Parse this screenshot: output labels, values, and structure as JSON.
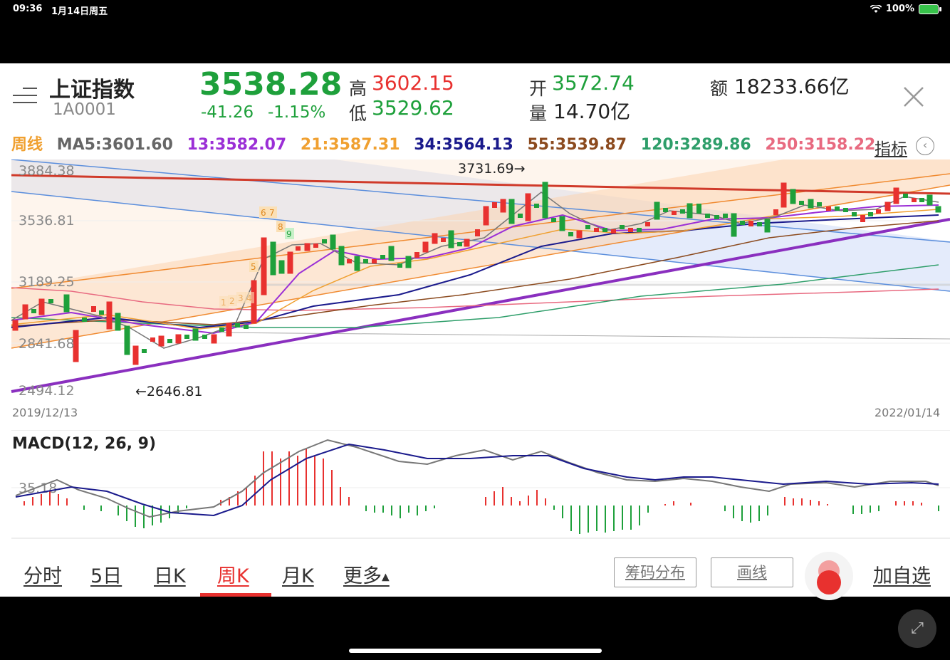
{
  "status_bar": {
    "time": "09:36",
    "date": "1月14日周五",
    "battery": "100%"
  },
  "header": {
    "name": "上证指数",
    "code": "1A0001",
    "price": "3538.28",
    "change": "-41.26",
    "change_pct": "-1.15%",
    "high_label": "高",
    "high": "3602.15",
    "low_label": "低",
    "low": "3529.62",
    "open_label": "开",
    "open": "3572.74",
    "volume_label": "量",
    "volume": "14.70亿",
    "amount_label": "额",
    "amount": "18233.66亿"
  },
  "ma_row": {
    "period": "周线",
    "ma5": "MA5:3601.60",
    "ma13": "13:3582.07",
    "ma21": "21:3587.31",
    "ma34": "34:3564.13",
    "ma55": "55:3539.87",
    "ma120": "120:3289.86",
    "ma250": "250:3158.22",
    "indicator_btn": "指标"
  },
  "colors": {
    "up": "#e8312f",
    "down": "#1ea03b",
    "ma5": "#777777",
    "ma13": "#9b2fd6",
    "ma21": "#f0a030",
    "ma34": "#1a1a8c",
    "ma55": "#8b4a1e",
    "ma120": "#2e9e6a",
    "ma250": "#e86a80"
  },
  "chart": {
    "y_labels": [
      "3884.38",
      "3536.81",
      "3189.25",
      "2841.68",
      "2494.12"
    ],
    "annotation_high": "3731.69→",
    "annotation_low": "←2646.81",
    "td_marks": [
      "5",
      "6",
      "7",
      "8",
      "9",
      "1",
      "2",
      "3",
      "4"
    ],
    "date_start": "2019/12/13",
    "date_end": "2022/01/14"
  },
  "macd": {
    "title": "MACD(12, 26, 9)",
    "level": "35.18"
  },
  "tabs": {
    "items": [
      "分时",
      "5日",
      "日K",
      "周K",
      "月K",
      "更多"
    ],
    "chip_btn": "筹码分布",
    "draw_btn": "画线",
    "add_fav": "加自选"
  }
}
